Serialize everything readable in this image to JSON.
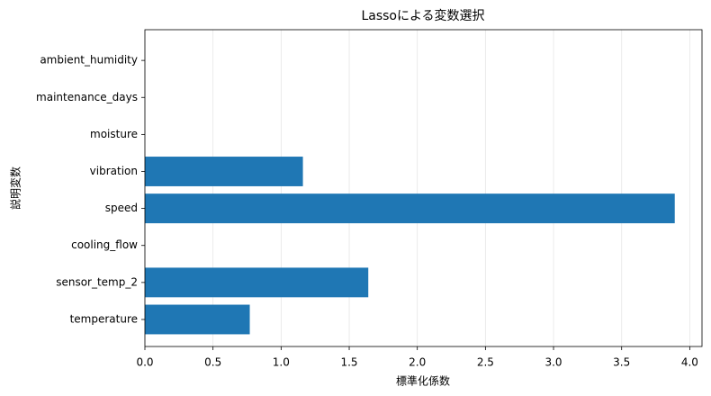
{
  "chart_data": {
    "type": "barh",
    "title": "Lassoによる変数選択",
    "x_label": "標準化係数",
    "y_label": "説明変数",
    "categories": [
      "temperature",
      "sensor_temp_2",
      "cooling_flow",
      "speed",
      "vibration",
      "moisture",
      "maintenance_days",
      "ambient_humidity"
    ],
    "values": [
      0.77,
      1.64,
      0,
      3.89,
      1.16,
      0,
      0,
      0
    ],
    "color": "#1f77b4",
    "xlim": [
      0,
      4.09
    ],
    "xticks": [
      {
        "value": 0,
        "label": "0.0"
      },
      {
        "value": 0.5,
        "label": "0.5"
      },
      {
        "value": 1,
        "label": "1.0"
      },
      {
        "value": 1.5,
        "label": "1.5"
      },
      {
        "value": 2,
        "label": "2.0"
      },
      {
        "value": 2.5,
        "label": "2.5"
      },
      {
        "value": 3,
        "label": "3.0"
      },
      {
        "value": 3.5,
        "label": "3.5"
      },
      {
        "value": 4,
        "label": "4.0"
      }
    ],
    "grid": true
  }
}
